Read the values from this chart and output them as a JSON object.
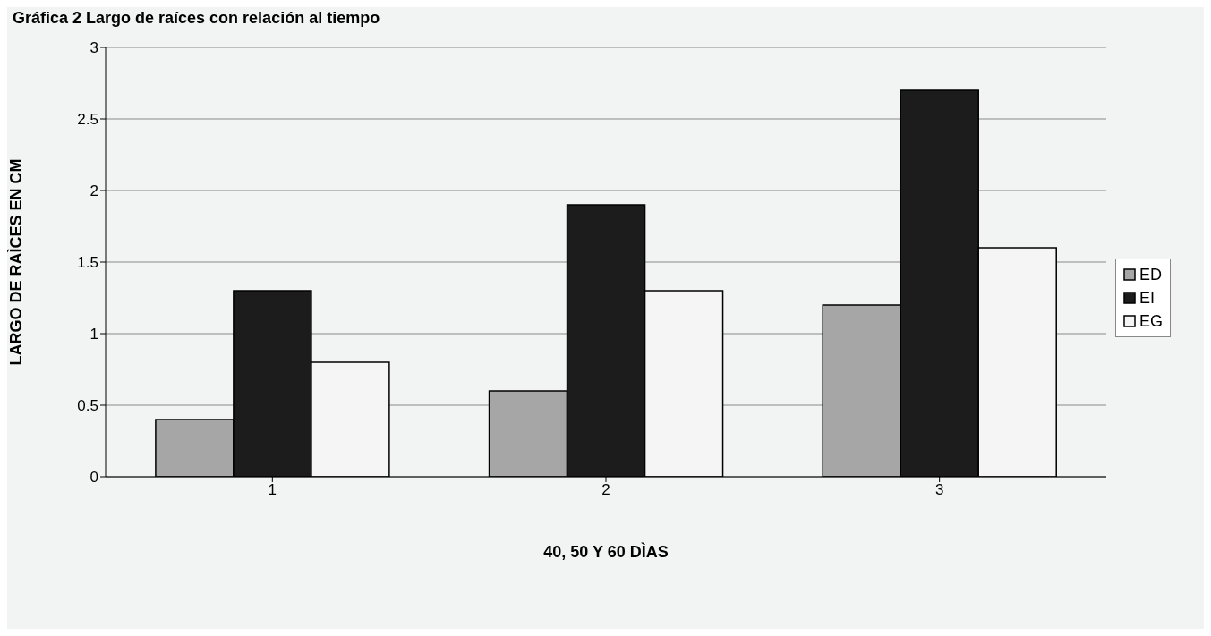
{
  "chart_data": {
    "type": "bar",
    "title": "Gráfica 2 Largo de raíces con relación al tiempo",
    "xlabel": "40, 50 Y 60 DÌAS",
    "ylabel": "LARGO DE RAÌCES EN CM",
    "categories": [
      "1",
      "2",
      "3"
    ],
    "series": [
      {
        "name": "ED",
        "color": "#a6a6a6",
        "values": [
          0.4,
          0.6,
          1.2
        ]
      },
      {
        "name": "EI",
        "color": "#1c1c1c",
        "values": [
          1.3,
          1.9,
          2.7
        ]
      },
      {
        "name": "EG",
        "color": "#f5f5f5",
        "values": [
          0.8,
          1.3,
          1.6
        ]
      }
    ],
    "ylim": [
      0,
      3
    ],
    "yticks": [
      0,
      0.5,
      1,
      1.5,
      2,
      2.5,
      3
    ],
    "grid": "y",
    "legend": "right"
  }
}
